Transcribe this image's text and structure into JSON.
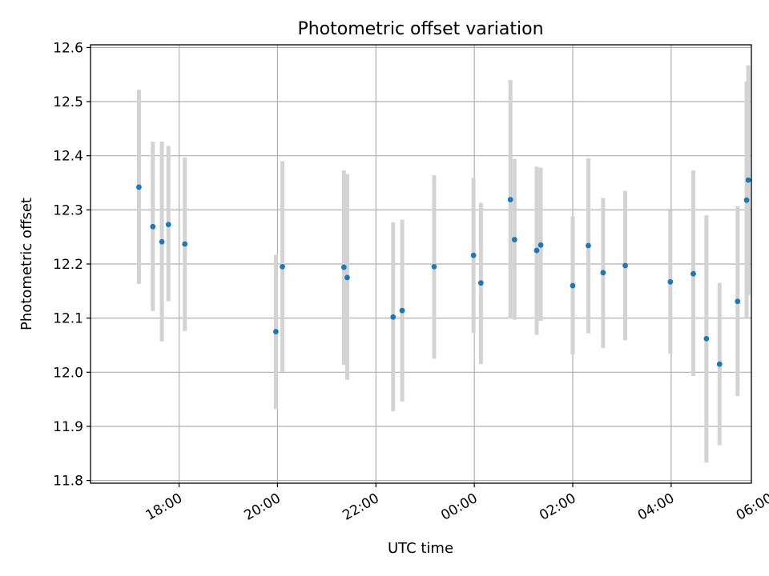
{
  "chart_data": {
    "type": "scatter",
    "title": "Photometric offset variation",
    "xlabel": "UTC time",
    "ylabel": "Photometric offset",
    "grid": true,
    "x_axis": "time",
    "x_start_label": "2024-01-01 17:00",
    "xlim_hours": [
      16.2,
      29.63
    ],
    "ylim": [
      11.795,
      12.605
    ],
    "xticks": [
      {
        "hours": 18,
        "label": "18:00"
      },
      {
        "hours": 20,
        "label": "20:00"
      },
      {
        "hours": 22,
        "label": "22:00"
      },
      {
        "hours": 24,
        "label": "00:00"
      },
      {
        "hours": 26,
        "label": "02:00"
      },
      {
        "hours": 28,
        "label": "04:00"
      },
      {
        "hours": 30,
        "label": "06:00"
      }
    ],
    "yticks": [
      "11.8",
      "11.9",
      "12.0",
      "12.1",
      "12.2",
      "12.3",
      "12.4",
      "12.5",
      "12.6"
    ],
    "colors": {
      "points": "#1f77b4",
      "errorbars": "#d3d3d3",
      "grid": "#b0b0b0"
    },
    "points": [
      {
        "time": "17:11",
        "y": 12.342,
        "lo": 12.163,
        "hi": 12.522
      },
      {
        "time": "17:28",
        "y": 12.269,
        "lo": 12.113,
        "hi": 12.426
      },
      {
        "time": "17:39",
        "y": 12.241,
        "lo": 12.057,
        "hi": 12.426
      },
      {
        "time": "17:47",
        "y": 12.273,
        "lo": 12.131,
        "hi": 12.418
      },
      {
        "time": "18:07",
        "y": 12.237,
        "lo": 12.076,
        "hi": 12.397
      },
      {
        "time": "19:58",
        "y": 12.075,
        "lo": 11.932,
        "hi": 12.217
      },
      {
        "time": "20:06",
        "y": 12.195,
        "lo": 12.001,
        "hi": 12.39
      },
      {
        "time": "21:21",
        "y": 12.194,
        "lo": 12.014,
        "hi": 12.373
      },
      {
        "time": "21:25",
        "y": 12.175,
        "lo": 11.986,
        "hi": 12.366
      },
      {
        "time": "22:21",
        "y": 12.102,
        "lo": 11.928,
        "hi": 12.277
      },
      {
        "time": "22:32",
        "y": 12.114,
        "lo": 11.946,
        "hi": 12.282
      },
      {
        "time": "23:11",
        "y": 12.195,
        "lo": 12.025,
        "hi": 12.364
      },
      {
        "time": "23:59",
        "y": 12.216,
        "lo": 12.073,
        "hi": 12.359
      },
      {
        "time": "00:08",
        "y": 12.165,
        "lo": 12.015,
        "hi": 12.313
      },
      {
        "time": "00:44",
        "y": 12.319,
        "lo": 12.099,
        "hi": 12.54
      },
      {
        "time": "00:49",
        "y": 12.245,
        "lo": 12.097,
        "hi": 12.394
      },
      {
        "time": "01:16",
        "y": 12.225,
        "lo": 12.069,
        "hi": 12.38
      },
      {
        "time": "01:21",
        "y": 12.235,
        "lo": 12.095,
        "hi": 12.378
      },
      {
        "time": "02:00",
        "y": 12.16,
        "lo": 12.033,
        "hi": 12.288
      },
      {
        "time": "02:19",
        "y": 12.234,
        "lo": 12.072,
        "hi": 12.395
      },
      {
        "time": "02:37",
        "y": 12.184,
        "lo": 12.045,
        "hi": 12.322
      },
      {
        "time": "03:04",
        "y": 12.197,
        "lo": 12.059,
        "hi": 12.335
      },
      {
        "time": "03:59",
        "y": 12.167,
        "lo": 12.034,
        "hi": 12.299
      },
      {
        "time": "04:27",
        "y": 12.182,
        "lo": 11.993,
        "hi": 12.373
      },
      {
        "time": "04:43",
        "y": 12.062,
        "lo": 11.833,
        "hi": 12.29
      },
      {
        "time": "04:59",
        "y": 12.015,
        "lo": 11.865,
        "hi": 12.165
      },
      {
        "time": "05:21",
        "y": 12.131,
        "lo": 11.956,
        "hi": 12.307
      },
      {
        "time": "05:32",
        "y": 12.318,
        "lo": 12.1,
        "hi": 12.537
      },
      {
        "time": "05:34",
        "y": 12.355,
        "lo": 12.143,
        "hi": 12.567
      }
    ]
  }
}
